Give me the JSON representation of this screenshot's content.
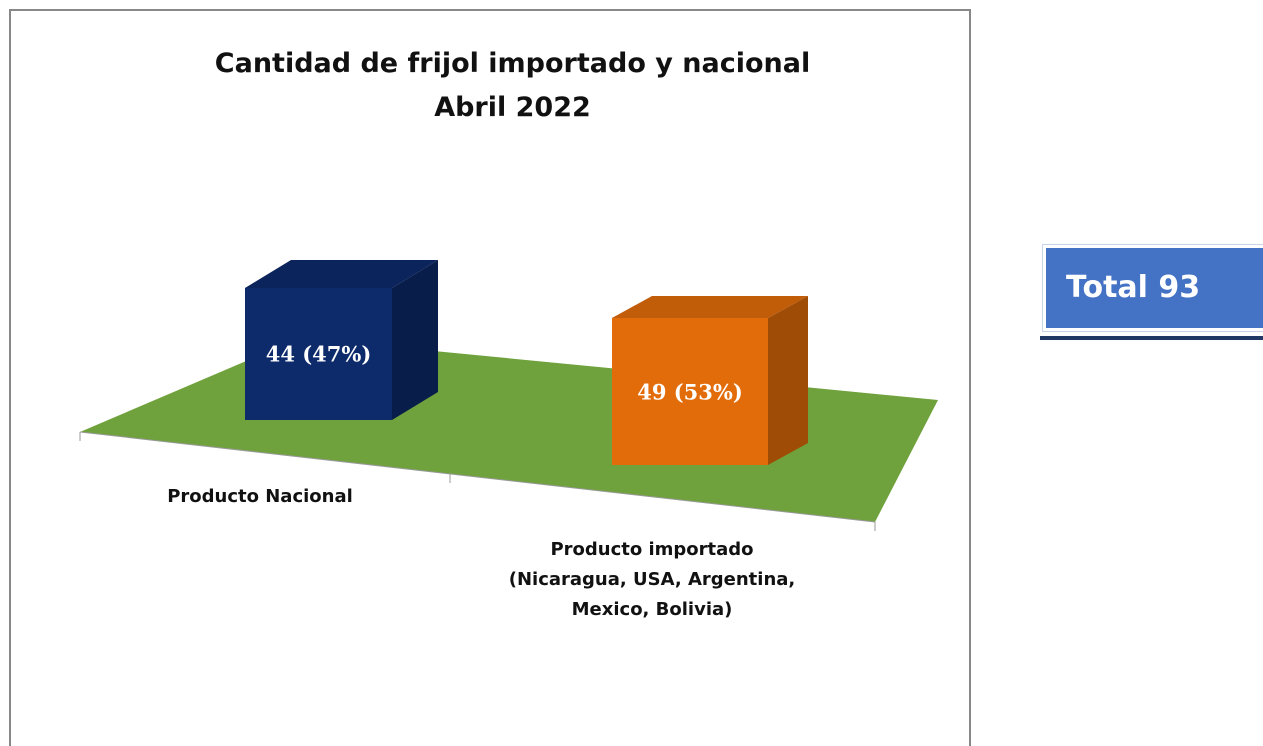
{
  "chart_data": {
    "type": "bar3d",
    "title": "Cantidad de frijol importado y nacional",
    "subtitle": "Abril 2022",
    "categories": [
      "Producto Nacional",
      "Producto importado\n(Nicaragua, USA, Argentina,\nMexico, Bolivia)"
    ],
    "values": [
      44,
      49
    ],
    "value_labels": [
      "44 (47%)",
      "49 (53%)"
    ],
    "colors": [
      "#0d2a6b",
      "#e36c0a"
    ],
    "floor_color": "#6fa23c",
    "annotation": "Total 93"
  }
}
